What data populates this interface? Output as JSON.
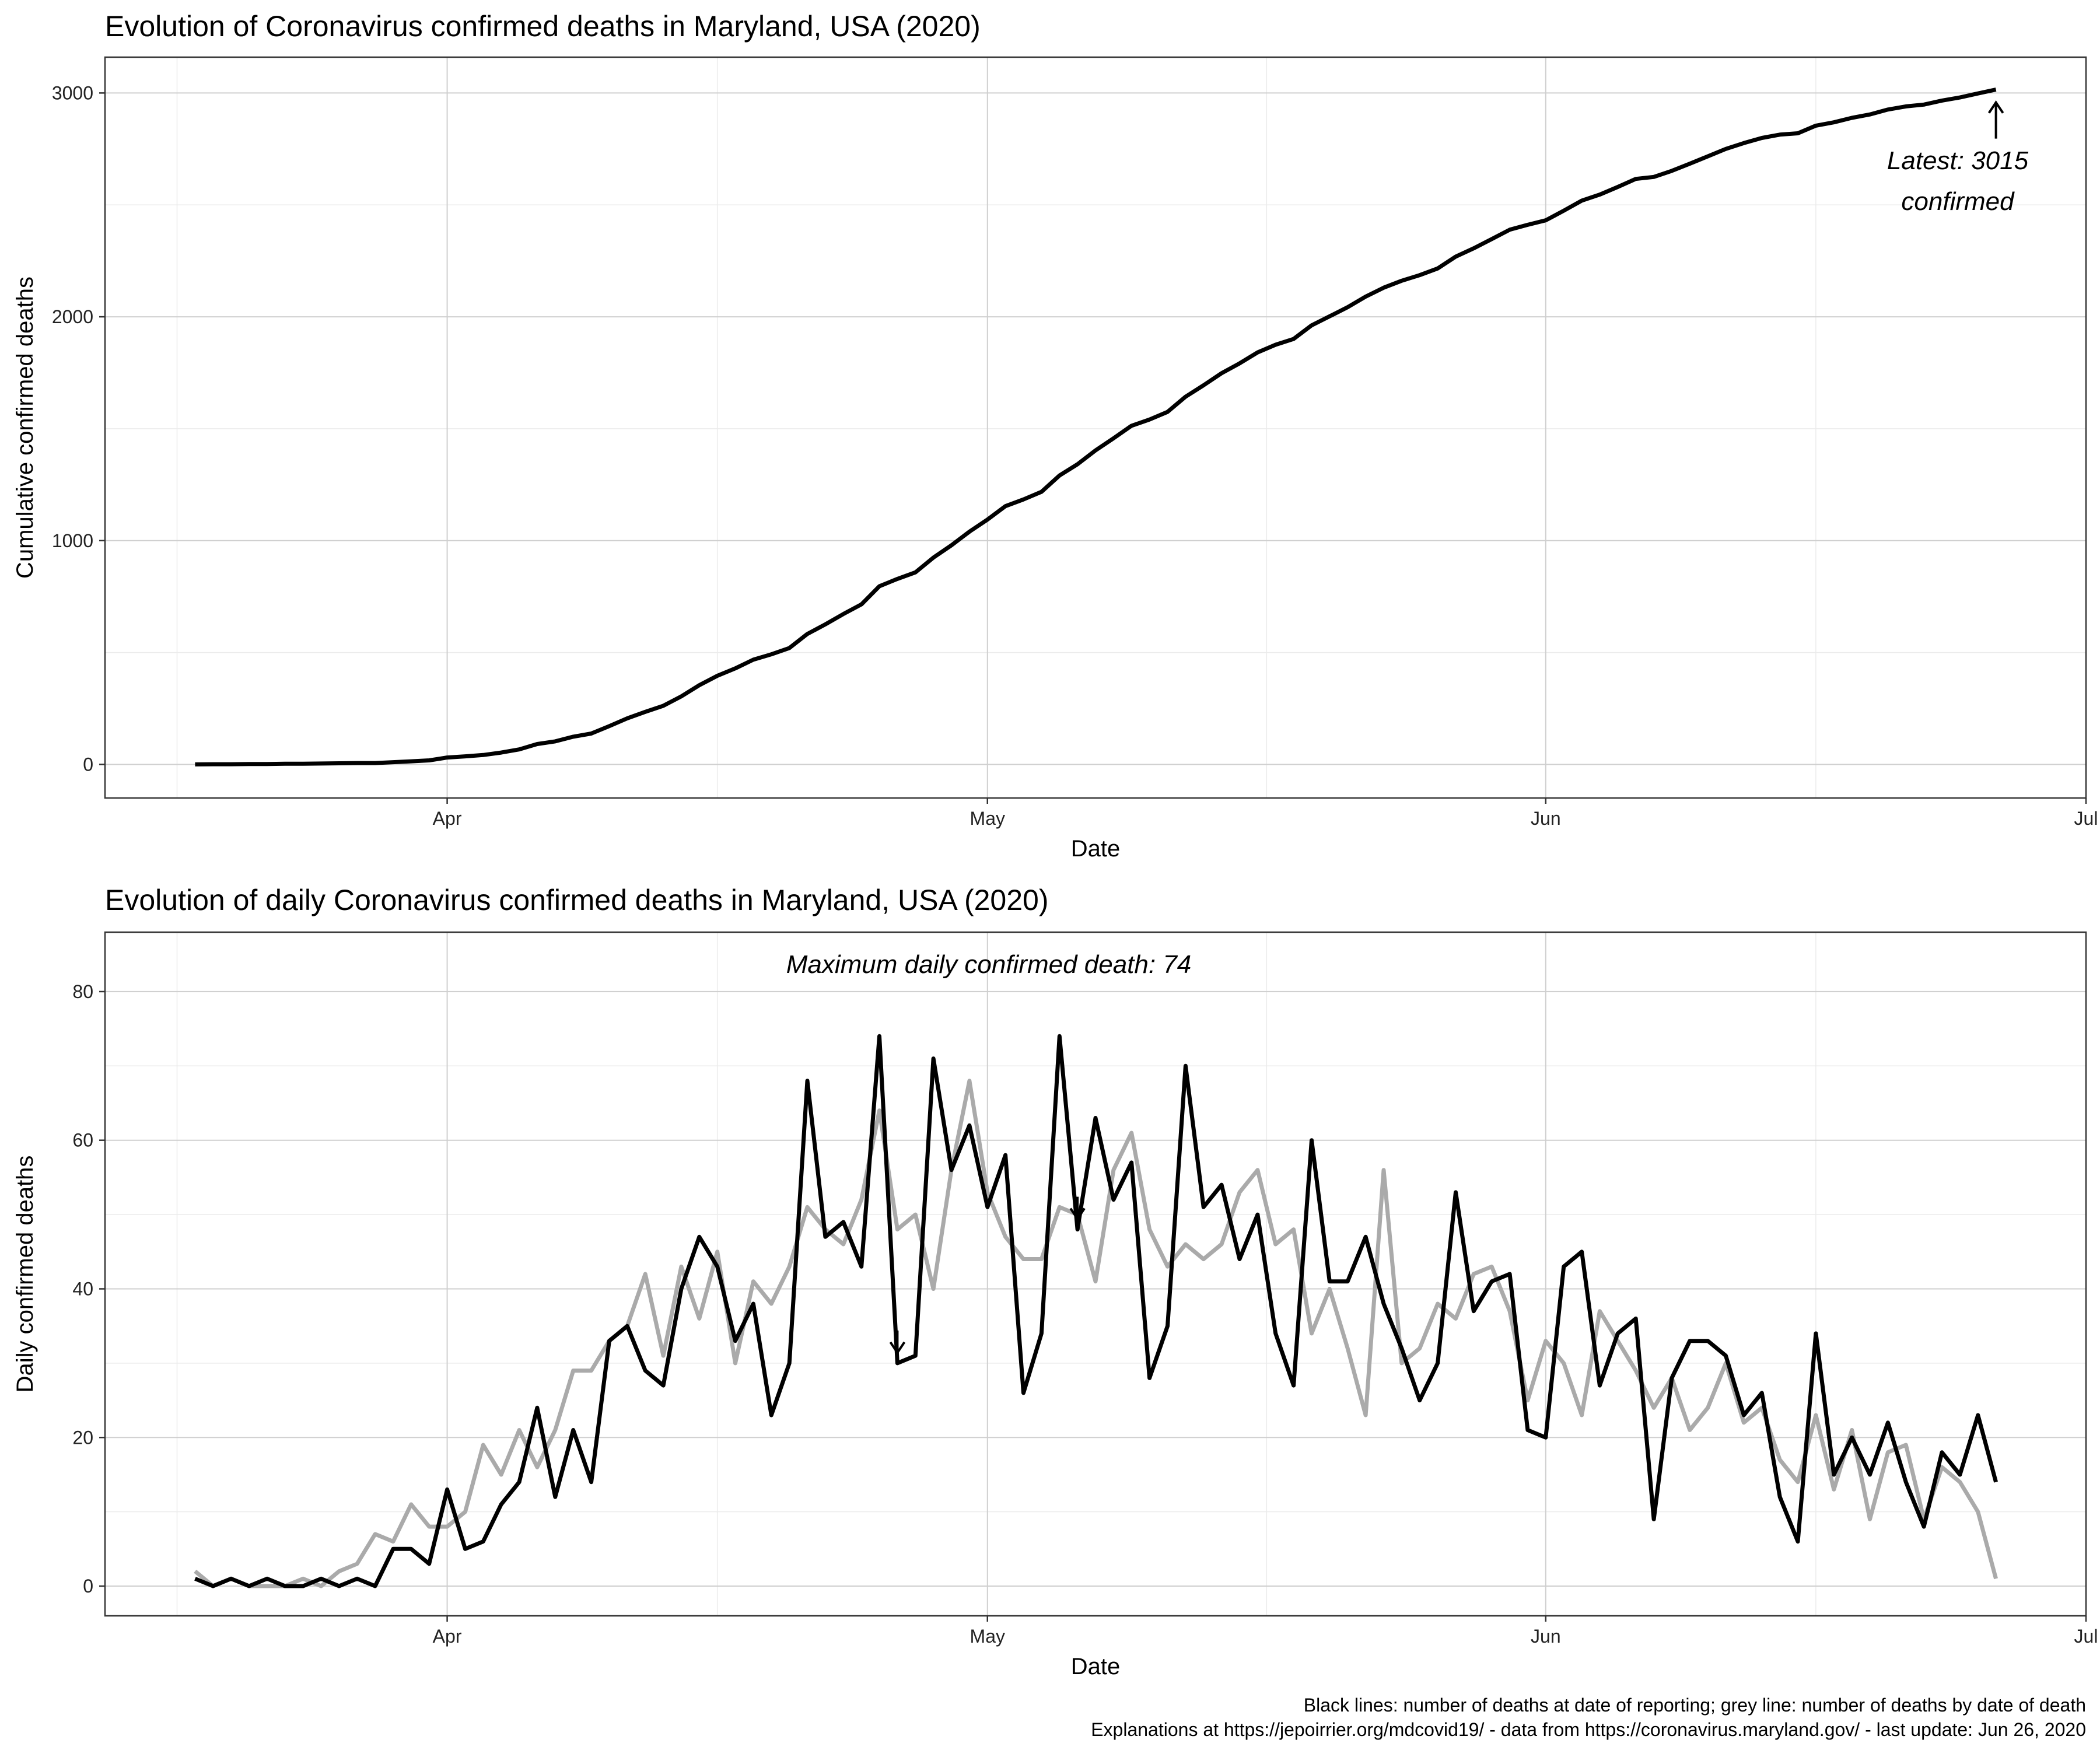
{
  "chart_data": [
    {
      "type": "line",
      "title": "Evolution of Coronavirus confirmed deaths in Maryland, USA (2020)",
      "xlabel": "Date",
      "ylabel": "Cumulative confirmed deaths",
      "x_tick_labels": [
        "Apr",
        "May",
        "Jun",
        "Jul"
      ],
      "x_ticks": [
        "2020-04-01",
        "2020-05-01",
        "2020-06-01",
        "2020-07-01"
      ],
      "y_ticks": [
        0,
        1000,
        2000,
        3000
      ],
      "xlim": [
        "2020-03-13",
        "2020-07-01"
      ],
      "ylim": [
        -150,
        3160
      ],
      "grid": true,
      "series": [
        {
          "color": "#000000",
          "x_start": "2020-03-18",
          "values": [
            0,
            1,
            1,
            2,
            2,
            3,
            3,
            4,
            5,
            6,
            6,
            10,
            14,
            18,
            31,
            36,
            42,
            53,
            67,
            91,
            103,
            124,
            138,
            171,
            206,
            235,
            262,
            304,
            354,
            396,
            429,
            468,
            492,
            520,
            583,
            626,
            672,
            715,
            796,
            829,
            858,
            924,
            979,
            1040,
            1094,
            1154,
            1184,
            1218,
            1291,
            1341,
            1403,
            1457,
            1513,
            1541,
            1575,
            1643,
            1694,
            1748,
            1792,
            1841,
            1875,
            1901,
            1962,
            2002,
            2043,
            2090,
            2130,
            2161,
            2186,
            2216,
            2269,
            2306,
            2347,
            2389,
            2411,
            2431,
            2474,
            2519,
            2546,
            2580,
            2616,
            2625,
            2652,
            2684,
            2717,
            2750,
            2776,
            2799,
            2814,
            2820,
            2854,
            2869,
            2889,
            2904,
            2926,
            2940,
            2948,
            2966,
            2980,
            2998,
            3015
          ]
        }
      ],
      "annotation_lines": [
        "Latest: 3015",
        "confirmed"
      ]
    },
    {
      "type": "line",
      "title": "Evolution of daily Coronavirus confirmed deaths in Maryland, USA (2020)",
      "xlabel": "Date",
      "ylabel": "Daily confirmed deaths",
      "x_tick_labels": [
        "Apr",
        "May",
        "Jun",
        "Jul"
      ],
      "x_ticks": [
        "2020-04-01",
        "2020-05-01",
        "2020-06-01",
        "2020-07-01"
      ],
      "y_ticks": [
        0,
        20,
        40,
        60,
        80
      ],
      "xlim": [
        "2020-03-13",
        "2020-07-01"
      ],
      "ylim": [
        -4,
        88
      ],
      "grid": true,
      "series": [
        {
          "color": "#aaaaaa",
          "x_start": "2020-03-18",
          "values": [
            2,
            0,
            1,
            0,
            0,
            0,
            1,
            0,
            2,
            3,
            7,
            6,
            11,
            8,
            8,
            10,
            19,
            15,
            21,
            16,
            21,
            29,
            29,
            33,
            35,
            42,
            31,
            43,
            36,
            45,
            30,
            41,
            38,
            43,
            51,
            48,
            46,
            52,
            64,
            48,
            50,
            40,
            56,
            68,
            53,
            47,
            44,
            44,
            51,
            50,
            41,
            56,
            61,
            48,
            43,
            46,
            44,
            46,
            53,
            56,
            46,
            48,
            34,
            40,
            32,
            23,
            56,
            30,
            32,
            38,
            36,
            42,
            43,
            37,
            25,
            33,
            30,
            23,
            37,
            33,
            29,
            24,
            28,
            21,
            24,
            30,
            22,
            24,
            17,
            14,
            23,
            13,
            21,
            9,
            18,
            19,
            9,
            16,
            14,
            10,
            1
          ]
        },
        {
          "color": "#000000",
          "x_start": "2020-03-18",
          "values": [
            1,
            0,
            1,
            0,
            1,
            0,
            0,
            1,
            0,
            1,
            0,
            5,
            5,
            3,
            13,
            5,
            6,
            11,
            14,
            24,
            12,
            21,
            14,
            33,
            35,
            29,
            27,
            40,
            47,
            43,
            33,
            38,
            23,
            30,
            68,
            47,
            49,
            43,
            74,
            30,
            31,
            71,
            56,
            62,
            51,
            58,
            26,
            34,
            74,
            48,
            63,
            52,
            57,
            28,
            35,
            70,
            51,
            54,
            44,
            50,
            34,
            27,
            60,
            41,
            41,
            47,
            38,
            32,
            25,
            30,
            53,
            37,
            41,
            42,
            21,
            20,
            43,
            45,
            27,
            34,
            36,
            9,
            28,
            33,
            33,
            31,
            23,
            26,
            12,
            6,
            34,
            15,
            20,
            15,
            22,
            14,
            8,
            18,
            15,
            23,
            14
          ]
        }
      ],
      "annotation": "Maximum daily confirmed death: 74",
      "annotation_targets": [
        "2020-04-26",
        "2020-05-06"
      ]
    }
  ],
  "caption": {
    "line1": "Black lines: number of deaths at date of reporting; grey line: number of deaths by date of death",
    "line2": "Explanations at https://jepoirrier.org/mdcovid19/ - data from https://coronavirus.maryland.gov/ - last update: Jun 26, 2020"
  }
}
